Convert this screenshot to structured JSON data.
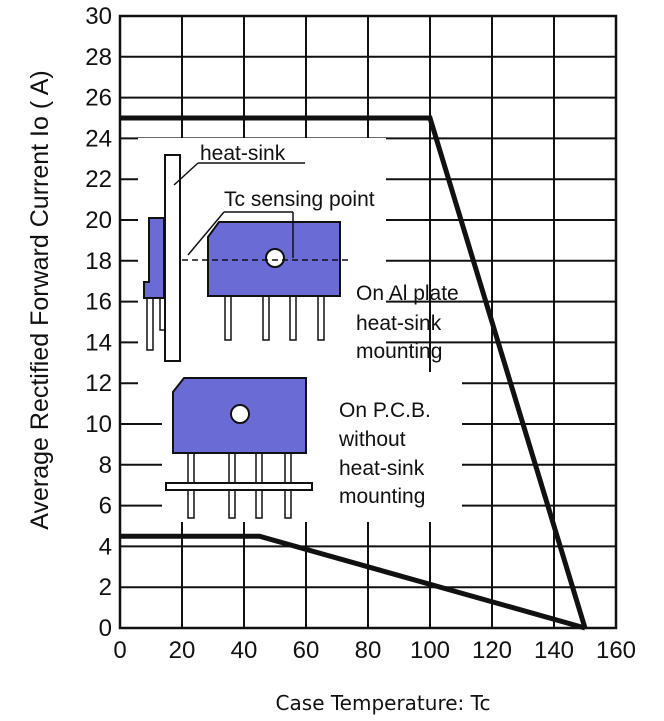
{
  "chart_data": {
    "type": "line",
    "xlabel": "Case Temperature: Tc",
    "ylabel": "Average Rectified Forward Current Io ( A)",
    "xlim": [
      0,
      160
    ],
    "ylim": [
      0,
      30
    ],
    "xticks": [
      0,
      20,
      40,
      60,
      80,
      100,
      120,
      140,
      160
    ],
    "yticks": [
      0,
      2,
      4,
      6,
      8,
      10,
      12,
      14,
      16,
      18,
      20,
      22,
      24,
      26,
      28,
      30
    ],
    "grid": true,
    "series": [
      {
        "name": "On Al plate heat-sink mounting",
        "x": [
          0,
          100,
          150
        ],
        "y": [
          25,
          25,
          0
        ]
      },
      {
        "name": "On P.C.B. without heat-sink mounting",
        "x": [
          0,
          45,
          150
        ],
        "y": [
          4.5,
          4.5,
          0
        ]
      }
    ],
    "annotations": {
      "heat_sink": "heat-sink",
      "sensing_point": "Tc sensing point",
      "al_plate": [
        "On Al plate",
        "heat-sink",
        "mounting"
      ],
      "pcb": [
        "On P.C.B.",
        "without",
        "heat-sink",
        "mounting"
      ]
    }
  },
  "colors": {
    "device": "#6b6bd6",
    "line": "#111111",
    "grid": "#111111"
  }
}
